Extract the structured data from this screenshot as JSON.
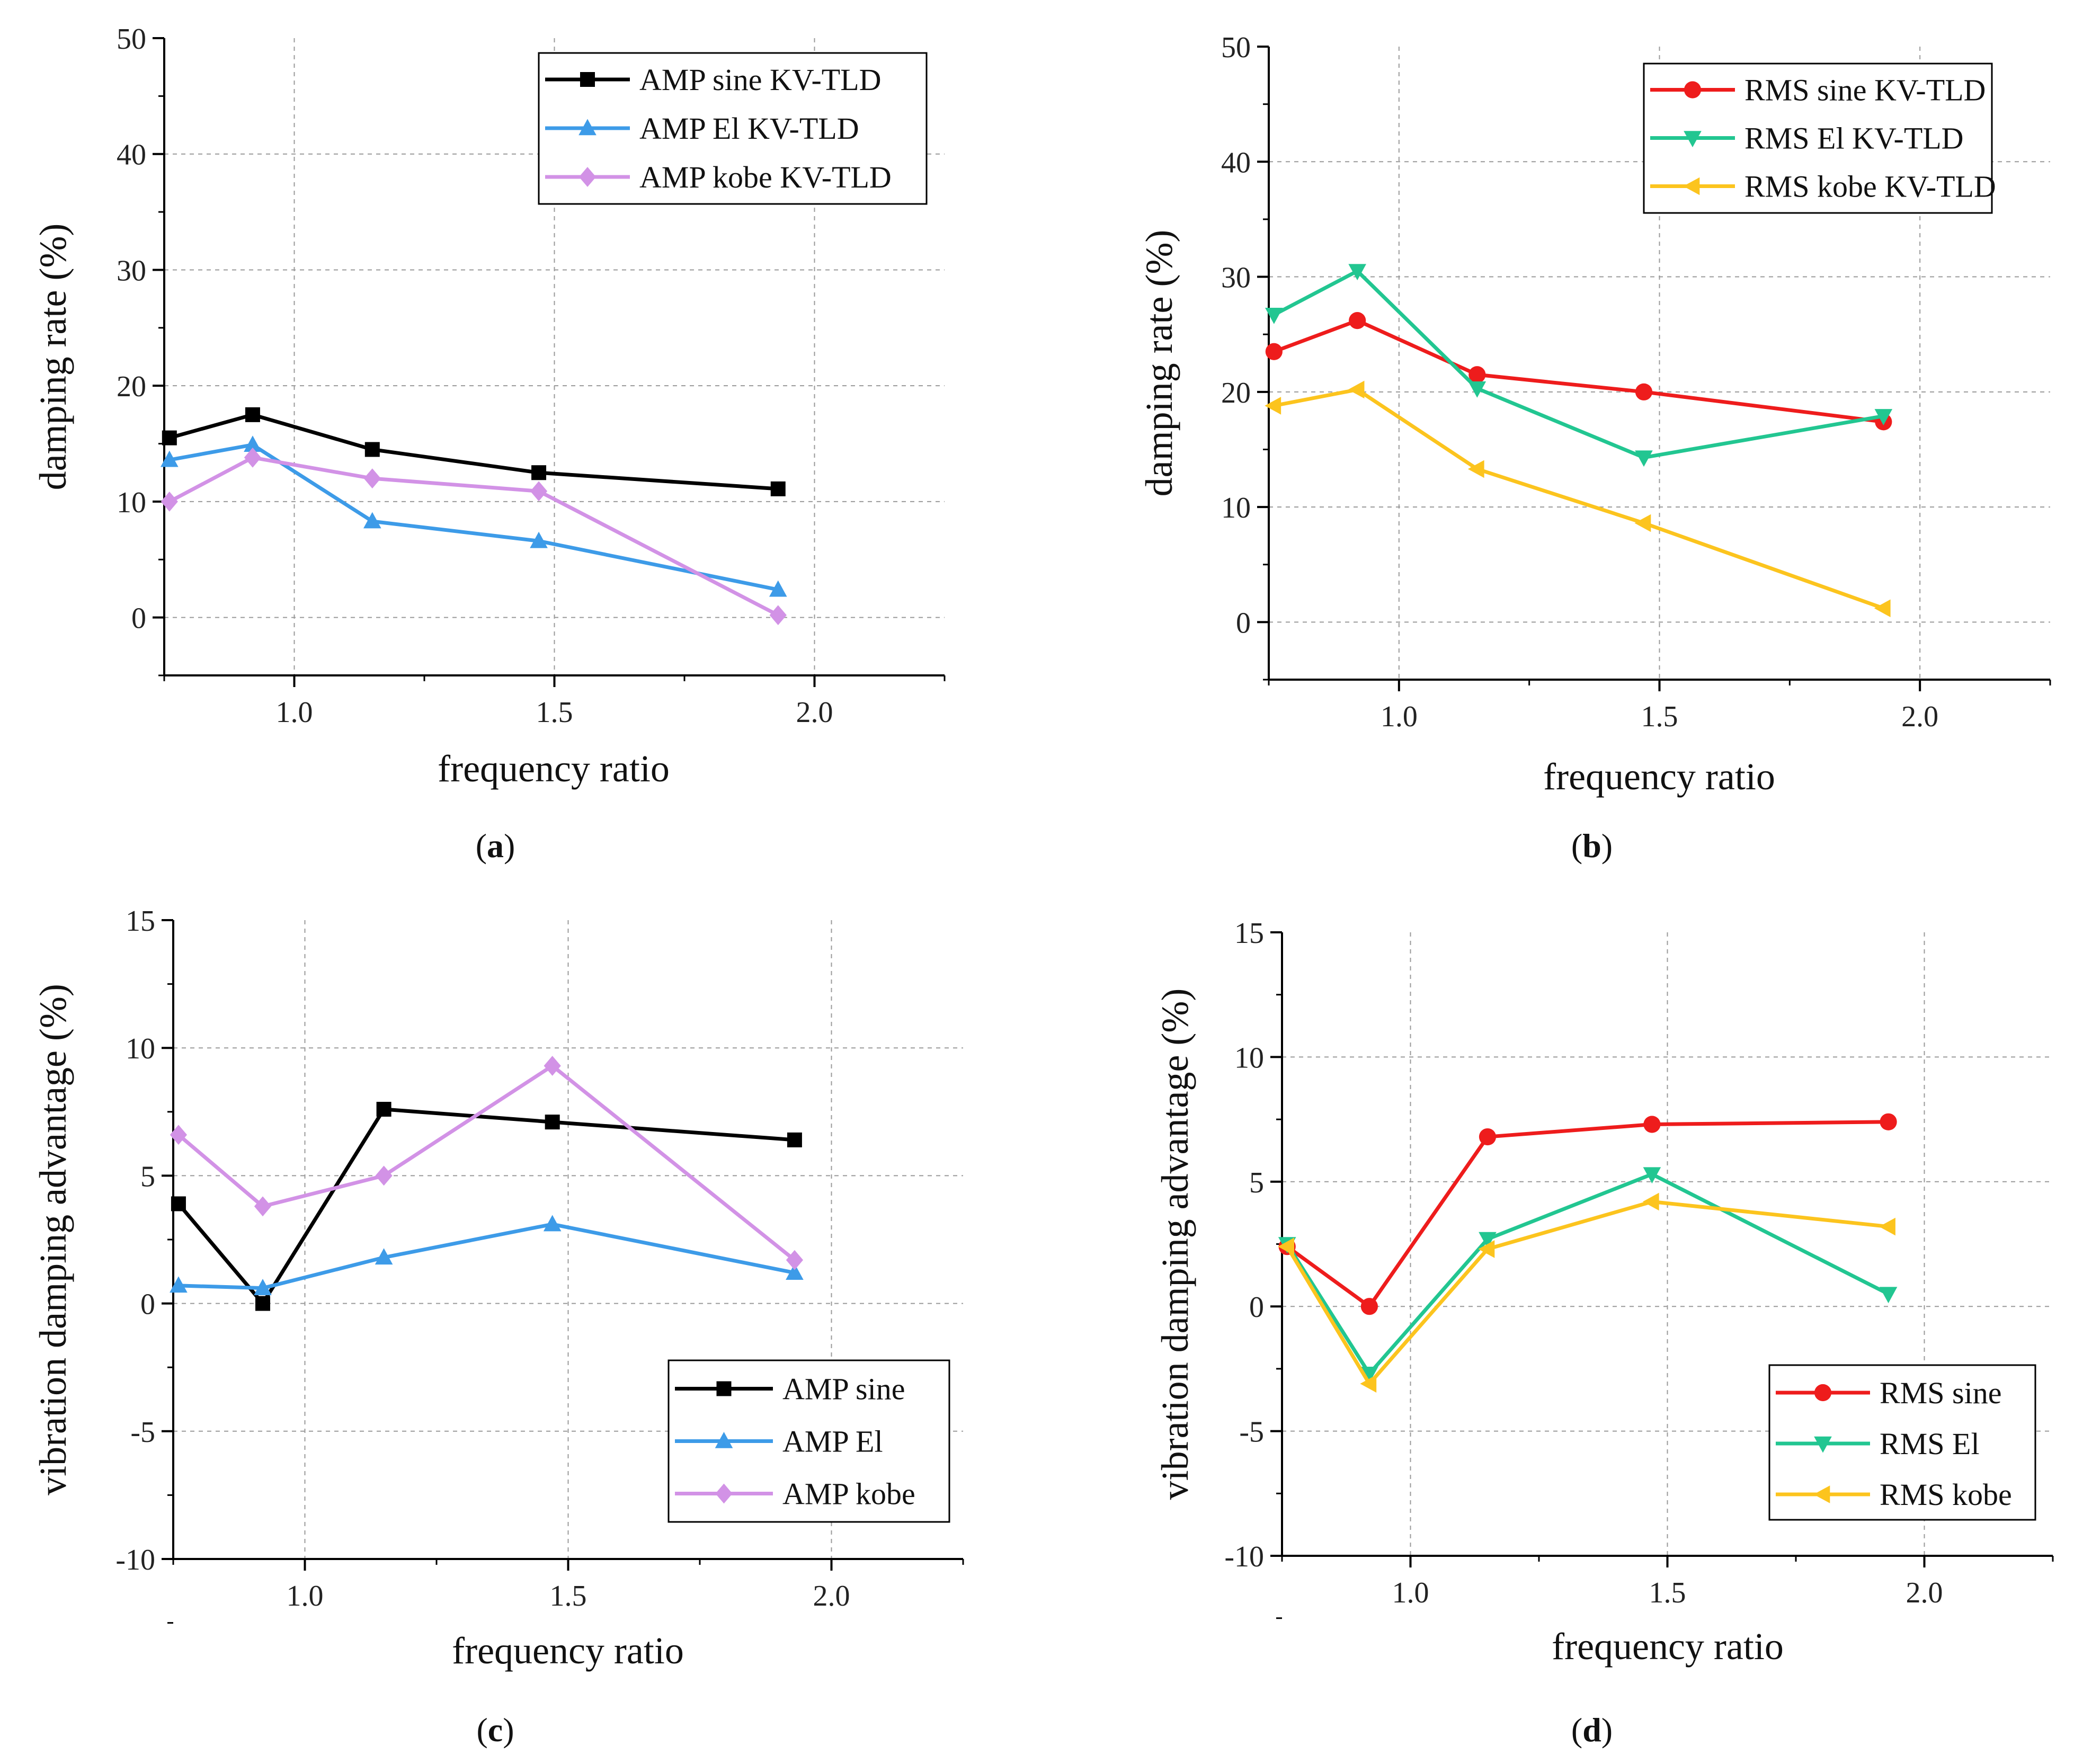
{
  "chart_data": [
    {
      "type": "line",
      "panel": "a",
      "caption": "a",
      "xlabel": "frequency ratio",
      "ylabel": "damping rate (%)",
      "xlim": [
        0.75,
        2.25
      ],
      "ylim": [
        -5,
        50
      ],
      "xticks": [
        1.0,
        1.5,
        2.0
      ],
      "xtick_labels": [
        "1.0",
        "1.5",
        "2.0"
      ],
      "yticks": [
        0,
        10,
        20,
        30,
        40,
        50
      ],
      "ytick_labels": [
        "0",
        "10",
        "20",
        "30",
        "40",
        "50"
      ],
      "grid": true,
      "legend_position": "top-right",
      "series": [
        {
          "name": "AMP sine KV-TLD",
          "color": "#000000",
          "marker": "square",
          "x": [
            0.76,
            0.92,
            1.15,
            1.47,
            1.93
          ],
          "y": [
            15.5,
            17.5,
            14.5,
            12.5,
            11.1
          ]
        },
        {
          "name": "AMP El KV-TLD",
          "color": "#3d9be8",
          "marker": "triangle-up",
          "x": [
            0.76,
            0.92,
            1.15,
            1.47,
            1.93
          ],
          "y": [
            13.6,
            14.9,
            8.3,
            6.6,
            2.4
          ]
        },
        {
          "name": "AMP kobe KV-TLD",
          "color": "#d292e6",
          "marker": "diamond",
          "x": [
            0.76,
            0.92,
            1.15,
            1.47,
            1.93
          ],
          "y": [
            10.0,
            13.8,
            12.0,
            10.9,
            0.2
          ]
        }
      ]
    },
    {
      "type": "line",
      "panel": "b",
      "caption": "b",
      "xlabel": "frequency ratio",
      "ylabel": "damping rate (%)",
      "xlim": [
        0.75,
        2.25
      ],
      "ylim": [
        -5,
        50
      ],
      "xticks": [
        1.0,
        1.5,
        2.0
      ],
      "xtick_labels": [
        "1.0",
        "1.5",
        "2.0"
      ],
      "yticks": [
        0,
        10,
        20,
        30,
        40,
        50
      ],
      "ytick_labels": [
        "0",
        "10",
        "20",
        "30",
        "40",
        "50"
      ],
      "grid": true,
      "legend_position": "top-right",
      "series": [
        {
          "name": "RMS sine KV-TLD",
          "color": "#ee1c1c",
          "marker": "circle",
          "x": [
            0.76,
            0.92,
            1.15,
            1.47,
            1.93
          ],
          "y": [
            23.5,
            26.2,
            21.5,
            20.0,
            17.4
          ]
        },
        {
          "name": "RMS El KV-TLD",
          "color": "#22c691",
          "marker": "triangle-down",
          "x": [
            0.76,
            0.92,
            1.15,
            1.47,
            1.93
          ],
          "y": [
            26.7,
            30.5,
            20.3,
            14.3,
            17.9
          ]
        },
        {
          "name": "RMS kobe KV-TLD",
          "color": "#fcc41e",
          "marker": "triangle-left",
          "x": [
            0.76,
            0.92,
            1.15,
            1.47,
            1.93
          ],
          "y": [
            18.8,
            20.2,
            13.3,
            8.6,
            1.2
          ]
        }
      ]
    },
    {
      "type": "line",
      "panel": "c",
      "caption": "c",
      "xlabel": "frequency ratio",
      "ylabel": "vibration damping advantage (%)",
      "xlim": [
        0.75,
        2.25
      ],
      "ylim": [
        -10,
        15
      ],
      "xticks": [
        1.0,
        1.5,
        2.0
      ],
      "xtick_labels": [
        "1.0",
        "1.5",
        "2.0"
      ],
      "yticks": [
        -10,
        -5,
        0,
        5,
        10,
        15
      ],
      "ytick_labels": [
        "-10",
        "-5",
        "0",
        "5",
        "10",
        "15"
      ],
      "grid": true,
      "legend_position": "bottom-right",
      "series": [
        {
          "name": "AMP sine",
          "color": "#000000",
          "marker": "square",
          "x": [
            0.76,
            0.92,
            1.15,
            1.47,
            1.93
          ],
          "y": [
            3.9,
            0.0,
            7.6,
            7.1,
            6.4
          ]
        },
        {
          "name": "AMP El",
          "color": "#3d9be8",
          "marker": "triangle-up",
          "x": [
            0.76,
            0.92,
            1.15,
            1.47,
            1.93
          ],
          "y": [
            0.7,
            0.6,
            1.8,
            3.1,
            1.2
          ]
        },
        {
          "name": "AMP kobe",
          "color": "#d292e6",
          "marker": "diamond",
          "x": [
            0.76,
            0.92,
            1.15,
            1.47,
            1.93
          ],
          "y": [
            6.6,
            3.8,
            5.0,
            9.3,
            1.7
          ]
        }
      ]
    },
    {
      "type": "line",
      "panel": "d",
      "caption": "d",
      "xlabel": "frequency ratio",
      "ylabel": "vibration damping advantage (%)",
      "xlim": [
        0.75,
        2.25
      ],
      "ylim": [
        -10,
        15
      ],
      "xticks": [
        1.0,
        1.5,
        2.0
      ],
      "xtick_labels": [
        "1.0",
        "1.5",
        "2.0"
      ],
      "yticks": [
        -10,
        -5,
        0,
        5,
        10,
        15
      ],
      "ytick_labels": [
        "-10",
        "-5",
        "0",
        "5",
        "10",
        "15"
      ],
      "grid": true,
      "legend_position": "bottom-right",
      "series": [
        {
          "name": "RMS sine",
          "color": "#ee1c1c",
          "marker": "circle",
          "x": [
            0.76,
            0.92,
            1.15,
            1.47,
            1.93
          ],
          "y": [
            2.4,
            0.0,
            6.8,
            7.3,
            7.4
          ]
        },
        {
          "name": "RMS El",
          "color": "#22c691",
          "marker": "triangle-down",
          "x": [
            0.76,
            0.92,
            1.15,
            1.47,
            1.93
          ],
          "y": [
            2.5,
            -2.7,
            2.7,
            5.3,
            0.5
          ]
        },
        {
          "name": "RMS kobe",
          "color": "#fcc41e",
          "marker": "triangle-left",
          "x": [
            0.76,
            0.92,
            1.15,
            1.47,
            1.93
          ],
          "y": [
            2.4,
            -3.1,
            2.3,
            4.2,
            3.2
          ]
        }
      ]
    }
  ]
}
